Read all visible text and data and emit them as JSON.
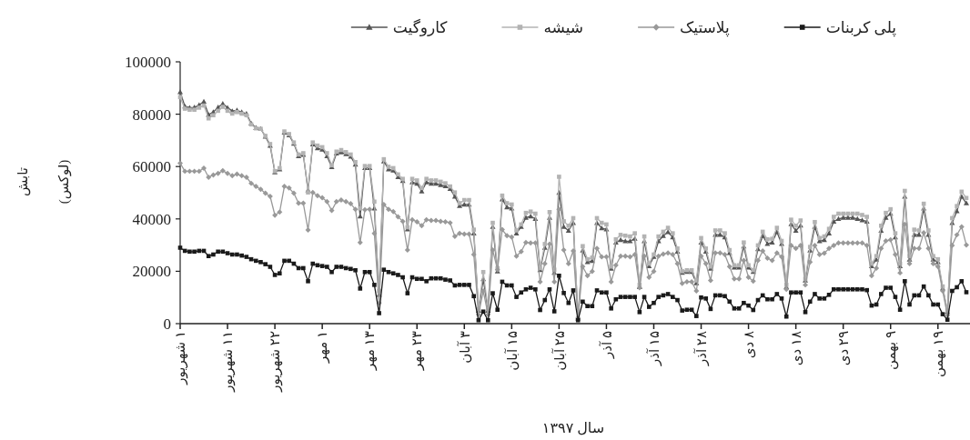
{
  "chart_data": {
    "type": "line",
    "xlabel": "سال ۱۳۹۷",
    "ylabel": "تابش\n(لوکس)",
    "legend": "top",
    "grid": false,
    "categories": [
      "۱ شهریور",
      null,
      null,
      null,
      null,
      null,
      null,
      null,
      null,
      null,
      "۱۱ شهریور",
      null,
      null,
      null,
      null,
      null,
      null,
      null,
      null,
      null,
      "۲۲ شهریور",
      null,
      null,
      null,
      null,
      null,
      null,
      null,
      null,
      null,
      "۱ مهر",
      null,
      null,
      null,
      null,
      null,
      null,
      null,
      null,
      null,
      "۱۳ مهر",
      null,
      null,
      null,
      null,
      null,
      null,
      null,
      null,
      null,
      "۲۳ مهر",
      null,
      null,
      null,
      null,
      null,
      null,
      null,
      null,
      null,
      "۳ آبان",
      null,
      null,
      null,
      null,
      null,
      null,
      null,
      null,
      null,
      "۱۵ آبان",
      null,
      null,
      null,
      null,
      null,
      null,
      null,
      null,
      null,
      "۲۵ آبان",
      null,
      null,
      null,
      null,
      null,
      null,
      null,
      null,
      null,
      "۵ آذر",
      null,
      null,
      null,
      null,
      null,
      null,
      null,
      null,
      null,
      "۱۵ آذر",
      null,
      null,
      null,
      null,
      null,
      null,
      null,
      null,
      null,
      "۲۸ آذر",
      null,
      null,
      null,
      null,
      null,
      null,
      null,
      null,
      null,
      "۸ دی",
      null,
      null,
      null,
      null,
      null,
      null,
      null,
      null,
      null,
      "۱۸ دی",
      null,
      null,
      null,
      null,
      null,
      null,
      null,
      null,
      null,
      "۲۹ دی",
      null,
      null,
      null,
      null,
      null,
      null,
      null,
      null,
      null,
      "۹ بهمن",
      null,
      null,
      null,
      null,
      null,
      null,
      null,
      null,
      null,
      "۱۹ بهمن",
      null,
      null,
      null,
      null,
      null,
      null
    ],
    "ylim": [
      0,
      100000
    ],
    "yticks": [
      0,
      20000,
      40000,
      60000,
      80000,
      100000
    ],
    "series": [
      {
        "name": "پلی کربنات",
        "color": "#1a1a1a",
        "marker": "square",
        "values": [
          29000,
          27800,
          27500,
          27500,
          27800,
          27800,
          25800,
          26400,
          27500,
          27500,
          26900,
          26400,
          26400,
          26000,
          25500,
          24600,
          24000,
          23500,
          22700,
          21700,
          18600,
          19200,
          24000,
          24000,
          22900,
          21200,
          21200,
          16200,
          22900,
          22300,
          22000,
          21700,
          19700,
          21700,
          21700,
          21200,
          20900,
          20400,
          13400,
          19700,
          19700,
          14800,
          4000,
          20600,
          19700,
          19200,
          18600,
          17700,
          11600,
          17700,
          17100,
          17100,
          16200,
          17300,
          17300,
          17300,
          16800,
          16500,
          14600,
          14800,
          14800,
          14800,
          10500,
          1300,
          4600,
          1300,
          11600,
          5300,
          16000,
          14600,
          14600,
          10200,
          11900,
          13100,
          13700,
          13100,
          5200,
          9000,
          13100,
          4700,
          18300,
          11700,
          7900,
          12700,
          1300,
          8400,
          6700,
          6700,
          12700,
          11900,
          11900,
          5800,
          9300,
          10200,
          10200,
          10200,
          10200,
          4400,
          10200,
          6400,
          7900,
          10200,
          10800,
          11300,
          10200,
          9000,
          5000,
          5300,
          5300,
          2900,
          10000,
          9600,
          5600,
          10800,
          10800,
          10500,
          8400,
          5800,
          5800,
          7900,
          6900,
          5200,
          9000,
          10800,
          9300,
          9300,
          11300,
          9600,
          2700,
          11900,
          11900,
          11900,
          4400,
          8400,
          11300,
          9600,
          9600,
          11000,
          13100,
          13100,
          13100,
          13100,
          13100,
          13100,
          13100,
          12800,
          6900,
          7300,
          11300,
          13700,
          13700,
          10200,
          5300,
          16200,
          7300,
          10800,
          10800,
          14200,
          10800,
          7300,
          7300,
          3600,
          1500,
          12500,
          13900,
          16200,
          12000
        ]
      },
      {
        "name": "پلاستیک",
        "color": "#999999",
        "marker": "diamond",
        "values": [
          61300,
          58200,
          58200,
          58200,
          58200,
          59400,
          55900,
          56800,
          57400,
          58400,
          57400,
          56500,
          57100,
          56500,
          55900,
          53600,
          52400,
          51300,
          49800,
          48600,
          41400,
          42600,
          52400,
          51800,
          49800,
          46000,
          46000,
          35800,
          50100,
          48900,
          48100,
          46600,
          43200,
          46600,
          47200,
          46600,
          45800,
          43700,
          31000,
          43500,
          43700,
          34500,
          7900,
          45500,
          43700,
          42800,
          40800,
          39100,
          28100,
          39700,
          38900,
          37400,
          39700,
          39400,
          39400,
          39100,
          38900,
          38500,
          33300,
          34500,
          34200,
          34200,
          26400,
          3500,
          12500,
          3500,
          28100,
          20600,
          35900,
          33600,
          33100,
          25800,
          27500,
          31000,
          30800,
          30800,
          16000,
          22900,
          30400,
          16000,
          43700,
          28100,
          22900,
          27800,
          2100,
          21800,
          18300,
          20000,
          28700,
          25500,
          25500,
          16000,
          22300,
          25800,
          25800,
          25500,
          26400,
          13700,
          25800,
          17700,
          20000,
          25800,
          26600,
          27000,
          26400,
          22900,
          15400,
          16000,
          16000,
          12500,
          25800,
          22900,
          16500,
          27000,
          27000,
          26400,
          21800,
          17100,
          17100,
          24100,
          17700,
          16200,
          24100,
          27800,
          25000,
          24100,
          27000,
          25500,
          13100,
          29900,
          28700,
          29900,
          14800,
          23500,
          29900,
          26400,
          26900,
          28700,
          29900,
          30800,
          30800,
          30800,
          30800,
          30800,
          30800,
          29900,
          18300,
          21200,
          28700,
          31600,
          32000,
          26400,
          19400,
          37900,
          22900,
          28700,
          28700,
          34700,
          28700,
          22900,
          21800,
          12500,
          3200,
          29900,
          33900,
          37000,
          30000
        ]
      },
      {
        "name": "شیشه",
        "color": "#b3b3b3",
        "marker": "square",
        "values": [
          86500,
          82100,
          81700,
          81700,
          82500,
          83300,
          78400,
          79600,
          81300,
          82800,
          81300,
          80200,
          80800,
          80200,
          79600,
          76100,
          74600,
          74400,
          71700,
          68600,
          58200,
          59400,
          73400,
          72400,
          69200,
          64600,
          65100,
          50100,
          69200,
          68000,
          67400,
          65100,
          60500,
          65700,
          66300,
          65500,
          64600,
          61700,
          44000,
          60200,
          60200,
          46600,
          12500,
          62800,
          59900,
          59400,
          57000,
          55300,
          36800,
          55300,
          54700,
          51800,
          55300,
          54700,
          54700,
          54200,
          53600,
          52400,
          50100,
          46000,
          47200,
          47200,
          35900,
          5600,
          19700,
          5600,
          38500,
          21200,
          48900,
          46000,
          45500,
          35600,
          37900,
          42300,
          42800,
          42000,
          21200,
          30400,
          42600,
          20600,
          56100,
          39100,
          37400,
          40300,
          2100,
          29600,
          24600,
          25200,
          40300,
          38500,
          37900,
          21800,
          32200,
          33900,
          33600,
          33300,
          34500,
          14800,
          33300,
          22900,
          26400,
          33300,
          35100,
          36600,
          34500,
          28700,
          20000,
          20400,
          20400,
          16500,
          32700,
          28700,
          21800,
          35600,
          35600,
          34500,
          28100,
          22300,
          22300,
          31000,
          22300,
          20400,
          29900,
          35100,
          32200,
          32400,
          36600,
          31600,
          14800,
          39700,
          37400,
          39400,
          17100,
          29300,
          38800,
          32700,
          33300,
          36200,
          40800,
          42000,
          42000,
          42000,
          42000,
          42000,
          41500,
          40800,
          22900,
          25800,
          37400,
          42300,
          43700,
          34500,
          22900,
          50700,
          25800,
          35900,
          35600,
          45800,
          35600,
          25800,
          24600,
          14200,
          5000,
          40300,
          44900,
          50400,
          48000
        ]
      },
      {
        "name": "کاروگیت",
        "color": "#555555",
        "marker": "triangle",
        "values": [
          88500,
          83000,
          82500,
          82600,
          83500,
          84800,
          79800,
          80800,
          82600,
          84000,
          82500,
          81200,
          81500,
          80800,
          80200,
          76500,
          74800,
          74400,
          71500,
          68000,
          57800,
          59000,
          73000,
          72000,
          68800,
          64000,
          64500,
          51000,
          68500,
          67000,
          66500,
          64000,
          59800,
          65000,
          65500,
          64800,
          63800,
          60800,
          41000,
          59500,
          59500,
          44000,
          11000,
          62000,
          59000,
          58500,
          56000,
          54500,
          36000,
          54000,
          53500,
          50500,
          54000,
          53500,
          53500,
          53000,
          52500,
          51500,
          48500,
          45000,
          45500,
          45500,
          34500,
          5000,
          17000,
          5000,
          37000,
          20000,
          47500,
          44500,
          44000,
          34500,
          37000,
          40500,
          41000,
          40000,
          20500,
          29000,
          40500,
          19500,
          50000,
          37000,
          35500,
          38500,
          2000,
          28000,
          23500,
          24000,
          38500,
          36500,
          36000,
          21000,
          31000,
          32000,
          31500,
          31500,
          32500,
          14000,
          31500,
          22000,
          25500,
          31500,
          33500,
          35000,
          33000,
          27500,
          19500,
          19800,
          19800,
          15500,
          31000,
          27500,
          21000,
          34000,
          34000,
          33000,
          27000,
          21500,
          21500,
          29500,
          21500,
          19800,
          28500,
          33500,
          30500,
          31000,
          35000,
          30500,
          14000,
          38000,
          35500,
          37500,
          16500,
          28000,
          37000,
          31500,
          32000,
          34500,
          39000,
          40000,
          40500,
          40500,
          40500,
          40000,
          39500,
          39000,
          22000,
          24500,
          35500,
          40500,
          42000,
          33000,
          22000,
          48500,
          24500,
          34000,
          34000,
          44000,
          34000,
          24500,
          23500,
          13500,
          4500,
          38500,
          43000,
          48500,
          46000
        ]
      }
    ]
  }
}
